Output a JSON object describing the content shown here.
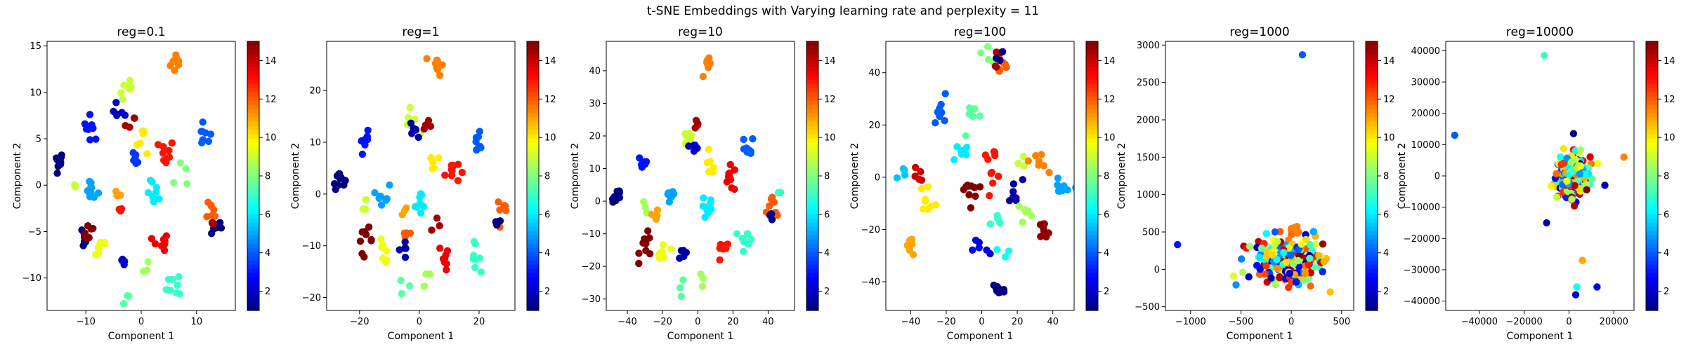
{
  "suptitle": "t-SNE Embeddings with Varying learning rate and perplexity = 11",
  "colormap": "jet",
  "color_range": [
    1,
    15
  ],
  "chart_data": [
    {
      "type": "scatter",
      "title": "reg=0.1",
      "xlabel": "Component 1",
      "ylabel": "Component 2",
      "xlim": [
        -17,
        17
      ],
      "ylim": [
        -13.5,
        15.5
      ],
      "xticks": [
        -10,
        0,
        10
      ],
      "yticks": [
        -10,
        -5,
        0,
        5,
        10,
        15
      ],
      "colorbar_ticks": [
        2,
        4,
        6,
        8,
        10,
        12,
        14
      ],
      "clusters": [
        {
          "x": 6.5,
          "y": 13.2,
          "c": 11.5,
          "n": 10,
          "s": 0.6
        },
        {
          "x": -15,
          "y": 2.6,
          "c": 1,
          "n": 9,
          "s": 0.5
        },
        {
          "x": -9,
          "y": 6.2,
          "c": 3,
          "n": 8,
          "s": 0.7
        },
        {
          "x": -2.5,
          "y": 10.2,
          "c": 9,
          "n": 7,
          "s": 0.7
        },
        {
          "x": -3.8,
          "y": 8.0,
          "c": 2,
          "n": 6,
          "s": 0.6
        },
        {
          "x": -2.0,
          "y": 6.5,
          "c": 14.5,
          "n": 4,
          "s": 0.5
        },
        {
          "x": 0.5,
          "y": 5.0,
          "c": 10,
          "n": 6,
          "s": 0.8
        },
        {
          "x": 4.5,
          "y": 3.5,
          "c": 13,
          "n": 10,
          "s": 0.7
        },
        {
          "x": -1.5,
          "y": 2.5,
          "c": 3.5,
          "n": 6,
          "s": 0.6
        },
        {
          "x": 11.5,
          "y": 5.3,
          "c": 4,
          "n": 8,
          "s": 0.6
        },
        {
          "x": -9.0,
          "y": -0.5,
          "c": 5,
          "n": 10,
          "s": 0.6
        },
        {
          "x": -12.5,
          "y": 0.0,
          "c": 9,
          "n": 3,
          "s": 0.5
        },
        {
          "x": -4.5,
          "y": -1.5,
          "c": 11,
          "n": 3,
          "s": 0.5
        },
        {
          "x": -3.5,
          "y": -3.0,
          "c": 13,
          "n": 3,
          "s": 0.5
        },
        {
          "x": 2.5,
          "y": -1.0,
          "c": 6,
          "n": 8,
          "s": 0.7
        },
        {
          "x": 7.0,
          "y": 1.0,
          "c": 8,
          "n": 4,
          "s": 1.0
        },
        {
          "x": 13.0,
          "y": -2.5,
          "c": 12,
          "n": 7,
          "s": 0.6
        },
        {
          "x": 13.5,
          "y": -4.5,
          "c": 1,
          "n": 5,
          "s": 0.5
        },
        {
          "x": 12.5,
          "y": -4.0,
          "c": 14.5,
          "n": 3,
          "s": 0.5
        },
        {
          "x": 3.5,
          "y": -6.5,
          "c": 13.5,
          "n": 8,
          "s": 0.7
        },
        {
          "x": -10.5,
          "y": -5.5,
          "c": 0.5,
          "n": 9,
          "s": 0.6
        },
        {
          "x": -9.5,
          "y": -5.0,
          "c": 15,
          "n": 6,
          "s": 0.6
        },
        {
          "x": -7.5,
          "y": -6.5,
          "c": 9.5,
          "n": 8,
          "s": 0.8
        },
        {
          "x": -3.0,
          "y": -8.5,
          "c": 2,
          "n": 4,
          "s": 0.5
        },
        {
          "x": 6.5,
          "y": -10.5,
          "c": 7,
          "n": 8,
          "s": 0.9
        },
        {
          "x": -2.5,
          "y": -12.0,
          "c": 7.5,
          "n": 3,
          "s": 0.6
        },
        {
          "x": 0.5,
          "y": -9.0,
          "c": 8.5,
          "n": 3,
          "s": 0.5
        }
      ]
    },
    {
      "type": "scatter",
      "title": "reg=1",
      "xlabel": "Component 1",
      "ylabel": "Component 2",
      "xlim": [
        -31,
        32
      ],
      "ylim": [
        -22.5,
        29.5
      ],
      "xticks": [
        -20,
        0,
        20
      ],
      "yticks": [
        -20,
        -10,
        0,
        10,
        20
      ],
      "colorbar_ticks": [
        2,
        4,
        6,
        8,
        10,
        12,
        14
      ],
      "clusters": [
        {
          "x": 6,
          "y": 25.0,
          "c": 11.5,
          "n": 10,
          "s": 1.0
        },
        {
          "x": -27,
          "y": 3.0,
          "c": 1,
          "n": 9,
          "s": 1.0
        },
        {
          "x": -18,
          "y": 10.0,
          "c": 3,
          "n": 8,
          "s": 1.0
        },
        {
          "x": -3,
          "y": 14.0,
          "c": 9,
          "n": 7,
          "s": 1.2
        },
        {
          "x": -1,
          "y": 12.5,
          "c": 1.5,
          "n": 6,
          "s": 1.0
        },
        {
          "x": 2,
          "y": 13.5,
          "c": 14.5,
          "n": 4,
          "s": 1.0
        },
        {
          "x": 4,
          "y": 6.0,
          "c": 10,
          "n": 6,
          "s": 1.2
        },
        {
          "x": 11,
          "y": 4.5,
          "c": 13,
          "n": 10,
          "s": 1.2
        },
        {
          "x": 20,
          "y": 10.0,
          "c": 4,
          "n": 8,
          "s": 1.2
        },
        {
          "x": -12,
          "y": 0.0,
          "c": 5,
          "n": 8,
          "s": 1.0
        },
        {
          "x": -18,
          "y": -2.0,
          "c": 9,
          "n": 3,
          "s": 1.0
        },
        {
          "x": -6,
          "y": -3.0,
          "c": 11,
          "n": 3,
          "s": 1.0
        },
        {
          "x": 1,
          "y": -2.0,
          "c": 6,
          "n": 8,
          "s": 1.2
        },
        {
          "x": 5,
          "y": -7.0,
          "c": 14.5,
          "n": 3,
          "s": 1.0
        },
        {
          "x": 28,
          "y": -3.0,
          "c": 12,
          "n": 7,
          "s": 1.0
        },
        {
          "x": 26,
          "y": -5.0,
          "c": 1,
          "n": 4,
          "s": 0.8
        },
        {
          "x": -4,
          "y": -8.0,
          "c": 12,
          "n": 4,
          "s": 1.0
        },
        {
          "x": 9,
          "y": -12.0,
          "c": 13.5,
          "n": 8,
          "s": 1.2
        },
        {
          "x": -18,
          "y": -9.0,
          "c": 15,
          "n": 9,
          "s": 1.2
        },
        {
          "x": -12,
          "y": -11.0,
          "c": 9.5,
          "n": 8,
          "s": 1.2
        },
        {
          "x": -5,
          "y": -10.5,
          "c": 1.5,
          "n": 5,
          "s": 1.0
        },
        {
          "x": 18,
          "y": -12.0,
          "c": 7,
          "n": 8,
          "s": 1.2
        },
        {
          "x": -5,
          "y": -18.0,
          "c": 7.5,
          "n": 3,
          "s": 1.0
        },
        {
          "x": 3,
          "y": -16.0,
          "c": 8.5,
          "n": 3,
          "s": 1.0
        }
      ]
    },
    {
      "type": "scatter",
      "title": "reg=10",
      "xlabel": "Component 1",
      "ylabel": "Component 2",
      "xlim": [
        -52,
        55
      ],
      "ylim": [
        -33.5,
        49
      ],
      "xticks": [
        -40,
        -20,
        0,
        20,
        40
      ],
      "yticks": [
        -30,
        -20,
        -10,
        0,
        10,
        20,
        30,
        40
      ],
      "colorbar_ticks": [
        2,
        4,
        6,
        8,
        10,
        12,
        14
      ],
      "clusters": [
        {
          "x": 6,
          "y": 41.0,
          "c": 11.5,
          "n": 10,
          "s": 1.5
        },
        {
          "x": -46,
          "y": 1.5,
          "c": 1,
          "n": 9,
          "s": 1.5
        },
        {
          "x": -31,
          "y": 12.0,
          "c": 3,
          "n": 8,
          "s": 1.5
        },
        {
          "x": -6,
          "y": 20.0,
          "c": 9,
          "n": 7,
          "s": 2.0
        },
        {
          "x": -2,
          "y": 17.0,
          "c": 2,
          "n": 6,
          "s": 1.5
        },
        {
          "x": 0,
          "y": 24.0,
          "c": 14.5,
          "n": 4,
          "s": 1.5
        },
        {
          "x": 7,
          "y": 10.0,
          "c": 10,
          "n": 6,
          "s": 1.8
        },
        {
          "x": 19,
          "y": 7.0,
          "c": 13.5,
          "n": 10,
          "s": 2.0
        },
        {
          "x": 28,
          "y": 16.0,
          "c": 4,
          "n": 8,
          "s": 2.0
        },
        {
          "x": -16,
          "y": 1.0,
          "c": 5,
          "n": 8,
          "s": 1.5
        },
        {
          "x": -30,
          "y": -3.0,
          "c": 8.5,
          "n": 3,
          "s": 1.5
        },
        {
          "x": 6,
          "y": -2.0,
          "c": 6,
          "n": 10,
          "s": 2.0
        },
        {
          "x": -25,
          "y": -5.0,
          "c": 11,
          "n": 4,
          "s": 1.5
        },
        {
          "x": 43,
          "y": -2.0,
          "c": 12,
          "n": 7,
          "s": 1.5
        },
        {
          "x": 42,
          "y": -4.0,
          "c": 1,
          "n": 4,
          "s": 1.0
        },
        {
          "x": 46,
          "y": 3.0,
          "c": 7,
          "n": 3,
          "s": 1.0
        },
        {
          "x": 14,
          "y": -16.0,
          "c": 13,
          "n": 8,
          "s": 2.0
        },
        {
          "x": -29,
          "y": -14.0,
          "c": 15,
          "n": 9,
          "s": 2.0
        },
        {
          "x": -20,
          "y": -16.0,
          "c": 9.5,
          "n": 8,
          "s": 2.0
        },
        {
          "x": -8,
          "y": -16.0,
          "c": 1.5,
          "n": 5,
          "s": 1.5
        },
        {
          "x": 28,
          "y": -12.0,
          "c": 7,
          "n": 8,
          "s": 2.0
        },
        {
          "x": -10,
          "y": -27.0,
          "c": 7.5,
          "n": 3,
          "s": 1.5
        },
        {
          "x": 4,
          "y": -24.0,
          "c": 8.5,
          "n": 3,
          "s": 1.5
        }
      ]
    },
    {
      "type": "scatter",
      "title": "reg=100",
      "xlabel": "Component 1",
      "ylabel": "Component 2",
      "xlim": [
        -54,
        52
      ],
      "ylim": [
        -51,
        52
      ],
      "xticks": [
        -40,
        -20,
        0,
        20,
        40
      ],
      "yticks": [
        -40,
        -20,
        0,
        20,
        40
      ],
      "colorbar_ticks": [
        2,
        4,
        6,
        8,
        10,
        12,
        14
      ],
      "clusters": [
        {
          "x": 10,
          "y": 44.0,
          "c": 12,
          "n": 7,
          "s": 2.5
        },
        {
          "x": 4,
          "y": 48.0,
          "c": 8,
          "n": 4,
          "s": 2.0
        },
        {
          "x": 8,
          "y": 45.0,
          "c": 14.5,
          "n": 4,
          "s": 2.0
        },
        {
          "x": 12,
          "y": 47.0,
          "c": 0.5,
          "n": 3,
          "s": 2.0
        },
        {
          "x": -22,
          "y": 26.0,
          "c": 4,
          "n": 9,
          "s": 2.5
        },
        {
          "x": -5,
          "y": 22.0,
          "c": 7.5,
          "n": 7,
          "s": 3.0
        },
        {
          "x": -12,
          "y": 10.0,
          "c": 6,
          "n": 8,
          "s": 2.5
        },
        {
          "x": 6,
          "y": 5.0,
          "c": 13,
          "n": 10,
          "s": 3.0
        },
        {
          "x": 22,
          "y": 8.0,
          "c": 9,
          "n": 3,
          "s": 2.0
        },
        {
          "x": 32,
          "y": 6.0,
          "c": 11.5,
          "n": 8,
          "s": 2.5
        },
        {
          "x": 45,
          "y": -6.0,
          "c": 5,
          "n": 8,
          "s": 2.5
        },
        {
          "x": -46,
          "y": 2.0,
          "c": 5.5,
          "n": 4,
          "s": 2.0
        },
        {
          "x": -36,
          "y": 0.0,
          "c": 14,
          "n": 5,
          "s": 2.5
        },
        {
          "x": -30,
          "y": -8.0,
          "c": 10,
          "n": 8,
          "s": 2.5
        },
        {
          "x": -8,
          "y": -5.0,
          "c": 15,
          "n": 10,
          "s": 3.0
        },
        {
          "x": 18,
          "y": -6.0,
          "c": 1.5,
          "n": 7,
          "s": 2.5
        },
        {
          "x": 24,
          "y": -14.0,
          "c": 8.5,
          "n": 6,
          "s": 3.0
        },
        {
          "x": 34,
          "y": -22.0,
          "c": 14.8,
          "n": 8,
          "s": 2.5
        },
        {
          "x": 10,
          "y": -18.0,
          "c": 7,
          "n": 4,
          "s": 2.5
        },
        {
          "x": 0,
          "y": -27.0,
          "c": 2.5,
          "n": 6,
          "s": 2.5
        },
        {
          "x": 12,
          "y": -30.0,
          "c": 6.5,
          "n": 3,
          "s": 2.0
        },
        {
          "x": -40,
          "y": -26.0,
          "c": 11,
          "n": 10,
          "s": 2.0
        },
        {
          "x": 9,
          "y": -43.0,
          "c": 1,
          "n": 10,
          "s": 2.0
        }
      ]
    },
    {
      "type": "scatter",
      "title": "reg=1000",
      "xlabel": "Component 1",
      "ylabel": "Component 2",
      "xlim": [
        -1250,
        620
      ],
      "ylim": [
        -550,
        3050
      ],
      "xticks": [
        -1000,
        -500,
        0,
        500
      ],
      "yticks": [
        -500,
        0,
        500,
        1000,
        1500,
        2000,
        2500,
        3000
      ],
      "colorbar_ticks": [
        2,
        4,
        6,
        8,
        10,
        12,
        14
      ],
      "points": [
        {
          "x": 110,
          "y": 2870,
          "c": 4
        },
        {
          "x": -1130,
          "y": 330,
          "c": 3
        }
      ],
      "clusters": [
        {
          "x": 40,
          "y": 520,
          "c": 11.5,
          "n": 10,
          "s": 40
        },
        {
          "x": 0,
          "y": 100,
          "c": 8,
          "n": 230,
          "s": 170
        }
      ]
    },
    {
      "type": "scatter",
      "title": "reg=10000",
      "xlabel": "Component 1",
      "ylabel": "Component 2",
      "xlim": [
        -55000,
        29000
      ],
      "ylim": [
        -43000,
        43000
      ],
      "xticks": [
        -40000,
        -20000,
        0,
        20000
      ],
      "yticks": [
        -40000,
        -30000,
        -20000,
        -10000,
        0,
        10000,
        20000,
        30000,
        40000
      ],
      "colorbar_ticks": [
        2,
        4,
        6,
        8,
        10,
        12,
        14
      ],
      "points": [
        {
          "x": -11000,
          "y": 38500,
          "c": 7
        },
        {
          "x": -51000,
          "y": 13000,
          "c": 4
        },
        {
          "x": 24500,
          "y": 6000,
          "c": 11.5
        },
        {
          "x": -10000,
          "y": -15000,
          "c": 1.5
        },
        {
          "x": 6000,
          "y": -27000,
          "c": 11
        },
        {
          "x": 3500,
          "y": -35500,
          "c": 6.5
        },
        {
          "x": 12500,
          "y": -35500,
          "c": 2.5
        },
        {
          "x": 3000,
          "y": -38000,
          "c": 2
        },
        {
          "x": 16000,
          "y": -3000,
          "c": 1.5
        },
        {
          "x": 2000,
          "y": 13500,
          "c": 0.5
        }
      ],
      "clusters": [
        {
          "x": 1500,
          "y": 0,
          "c": 8,
          "n": 260,
          "s": 3200
        }
      ]
    }
  ]
}
